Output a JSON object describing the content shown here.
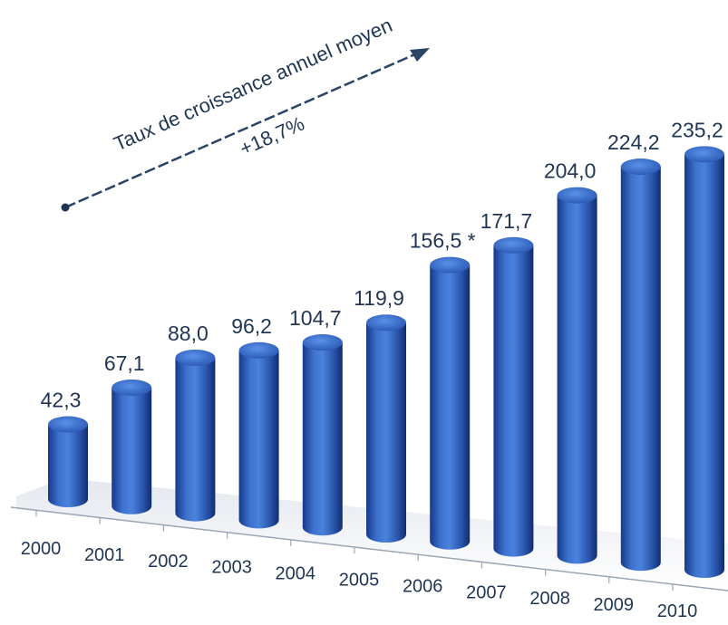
{
  "chart_data": {
    "type": "bar",
    "categories": [
      "2000",
      "2001",
      "2002",
      "2003",
      "2004",
      "2005",
      "2006",
      "2007",
      "2008",
      "2009",
      "2010"
    ],
    "values": [
      42.3,
      67.1,
      88.0,
      96.2,
      104.7,
      119.9,
      156.5,
      171.7,
      204.0,
      224.2,
      235.2
    ],
    "value_labels": [
      "42,3",
      "67,1",
      "88,0",
      "96,2",
      "104,7",
      "119,9",
      "156,5 *",
      "171,7",
      "204,0",
      "224,2",
      "235,2"
    ],
    "title": "",
    "xlabel": "",
    "ylabel": "",
    "ylim": [
      0,
      240
    ],
    "grid": false,
    "legend": "none",
    "bar_style": "3d-cylinder",
    "bar_color": "#2f5fb3",
    "annotation": {
      "label": "Taux de croissance annuel moyen",
      "value": "+18,7%",
      "color": "#1f3553"
    }
  }
}
